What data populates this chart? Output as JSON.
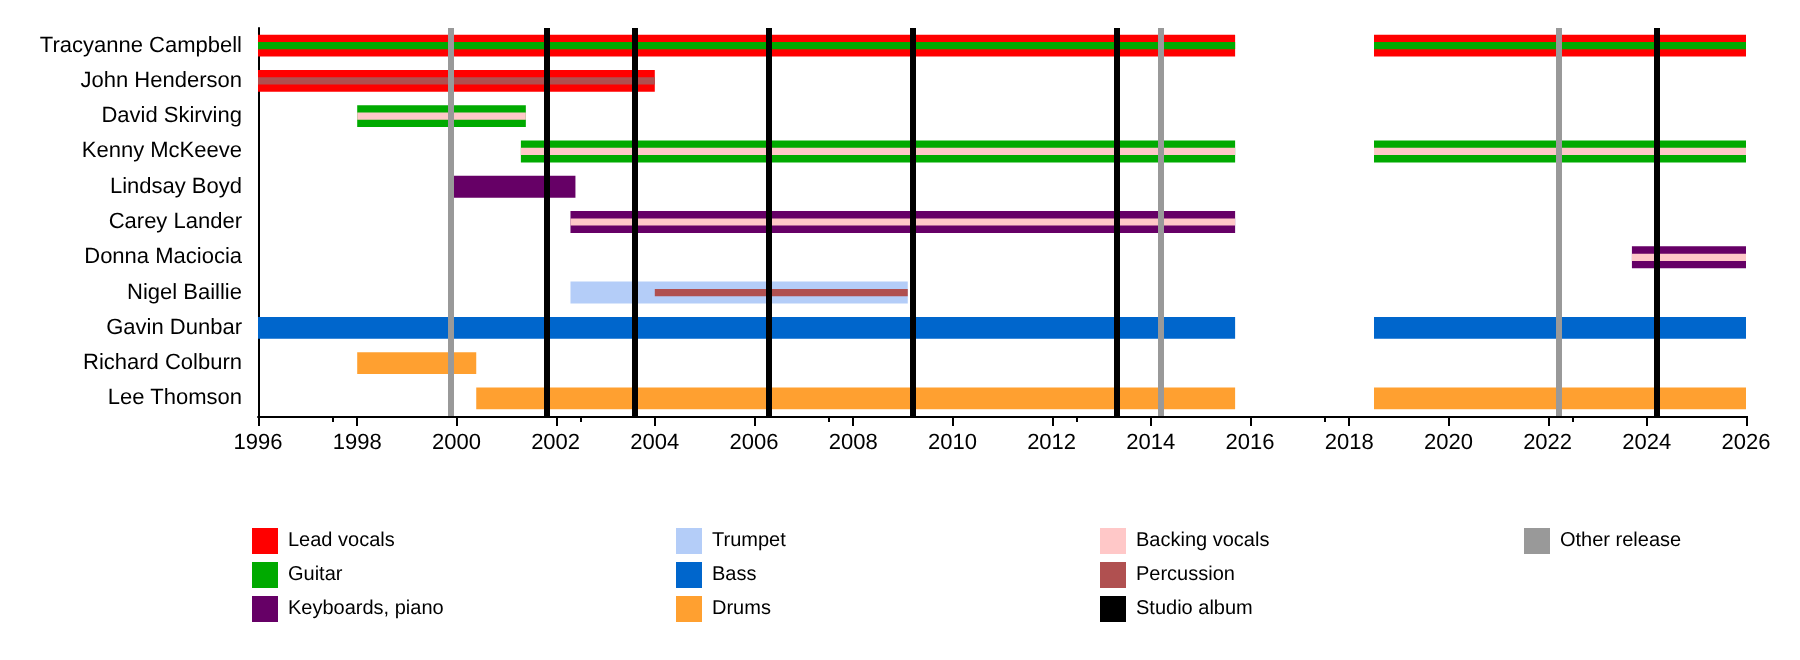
{
  "chart_data": {
    "type": "bar",
    "orientation": "horizontal",
    "categories": [
      "Tracyanne Campbell",
      "John Henderson",
      "David Skirving",
      "Kenny McKeeve",
      "Lindsay Boyd",
      "Carey Lander",
      "Donna Maciocia",
      "Nigel Baillie",
      "Gavin Dunbar",
      "Richard Colburn",
      "Lee Thomson"
    ],
    "series": [
      {
        "name": "Lead vocals",
        "color": "#ff0000",
        "base": [
          1996,
          1996,
          null,
          null,
          null,
          null,
          null,
          null,
          null,
          null,
          null
        ],
        "values": [
          19.7,
          8.0,
          null,
          null,
          null,
          null,
          null,
          null,
          null,
          null,
          null
        ]
      },
      {
        "color": "#ff0000",
        "base": [
          2018.5,
          null,
          null,
          null,
          null,
          null,
          null,
          null,
          null,
          null,
          null
        ],
        "values": [
          7.5,
          null,
          null,
          null,
          null,
          null,
          null,
          null,
          null,
          null,
          null
        ]
      },
      {
        "name": "Guitar",
        "color": "#00aa00",
        "base": [
          1996,
          null,
          1998,
          2001.3,
          null,
          null,
          null,
          null,
          null,
          null,
          null
        ],
        "values": [
          19.7,
          null,
          3.4,
          14.4,
          null,
          null,
          null,
          null,
          null,
          null,
          null
        ]
      },
      {
        "color": "#00aa00",
        "base": [
          2018.5,
          null,
          null,
          2018.5,
          null,
          null,
          null,
          null,
          null,
          null,
          null
        ],
        "values": [
          7.5,
          null,
          null,
          7.5,
          null,
          null,
          null,
          null,
          null,
          null,
          null
        ]
      },
      {
        "name": "Keyboards, piano",
        "color": "#660066",
        "base": [
          null,
          null,
          null,
          null,
          1999.9,
          2002.3,
          2023.7,
          null,
          null,
          null,
          null
        ],
        "values": [
          null,
          null,
          null,
          null,
          2.5,
          13.4,
          2.3,
          null,
          null,
          null,
          null
        ]
      },
      {
        "name": "Trumpet",
        "color": "#b4cdf8",
        "base": [
          null,
          null,
          null,
          null,
          null,
          null,
          null,
          2002.3,
          null,
          null,
          null
        ],
        "values": [
          null,
          null,
          null,
          null,
          null,
          null,
          null,
          6.8,
          null,
          null,
          null
        ]
      },
      {
        "name": "Bass",
        "color": "#0066cc",
        "base": [
          null,
          null,
          null,
          null,
          null,
          null,
          null,
          null,
          1996,
          null,
          null
        ],
        "values": [
          null,
          null,
          null,
          null,
          null,
          null,
          null,
          null,
          19.7,
          null,
          null
        ]
      },
      {
        "color": "#0066cc",
        "base": [
          null,
          null,
          null,
          null,
          null,
          null,
          null,
          null,
          2018.5,
          null,
          null
        ],
        "values": [
          null,
          null,
          null,
          null,
          null,
          null,
          null,
          null,
          7.5,
          null,
          null
        ]
      },
      {
        "name": "Drums",
        "color": "#ffa030",
        "base": [
          null,
          null,
          null,
          null,
          null,
          null,
          null,
          null,
          null,
          1998,
          2000.4
        ],
        "values": [
          null,
          null,
          null,
          null,
          null,
          null,
          null,
          null,
          null,
          2.4,
          15.3
        ]
      },
      {
        "color": "#ffa030",
        "base": [
          null,
          null,
          null,
          null,
          null,
          null,
          null,
          null,
          null,
          null,
          2018.5
        ],
        "values": [
          null,
          null,
          null,
          null,
          null,
          null,
          null,
          null,
          null,
          null,
          7.5
        ]
      },
      {
        "name": "Backing vocals",
        "color": "#ffc8c8",
        "base": [
          null,
          null,
          1998,
          2001.3,
          null,
          2002.3,
          2023.7,
          null,
          null,
          null,
          null
        ],
        "values": [
          null,
          null,
          3.4,
          14.4,
          null,
          13.4,
          2.3,
          null,
          null,
          null,
          null
        ]
      },
      {
        "color": "#ffc8c8",
        "base": [
          null,
          null,
          null,
          2018.5,
          null,
          null,
          null,
          null,
          null,
          null,
          null
        ],
        "values": [
          null,
          null,
          null,
          7.5,
          null,
          null,
          null,
          null,
          null,
          null,
          null
        ]
      },
      {
        "name": "Percussion",
        "color": "#b05050",
        "base": [
          null,
          1996,
          null,
          null,
          null,
          null,
          null,
          2004.0,
          null,
          null,
          null
        ],
        "values": [
          null,
          8.0,
          null,
          null,
          null,
          null,
          null,
          5.1,
          null,
          null,
          null
        ]
      }
    ],
    "ref_lines": [
      {
        "axis": "x",
        "value": 2001.8,
        "label": "Studio album",
        "color": "#000000"
      },
      {
        "axis": "x",
        "value": 2003.6,
        "color": "#000000"
      },
      {
        "axis": "x",
        "value": 2006.3,
        "color": "#000000"
      },
      {
        "axis": "x",
        "value": 2009.2,
        "color": "#000000"
      },
      {
        "axis": "x",
        "value": 2013.3,
        "color": "#000000"
      },
      {
        "axis": "x",
        "value": 2024.2,
        "color": "#000000"
      },
      {
        "axis": "x",
        "value": 1999.9,
        "label": "Other release",
        "color": "#999999"
      },
      {
        "axis": "x",
        "value": 2014.2,
        "color": "#999999"
      },
      {
        "axis": "x",
        "value": 2022.2,
        "color": "#999999"
      }
    ],
    "xlim": [
      1996,
      2026
    ],
    "xticks": [
      1996,
      1998,
      2000,
      2002,
      2004,
      2006,
      2008,
      2010,
      2012,
      2014,
      2016,
      2018,
      2020,
      2022,
      2024,
      2026
    ],
    "grid": false,
    "legend": "bottom"
  }
}
